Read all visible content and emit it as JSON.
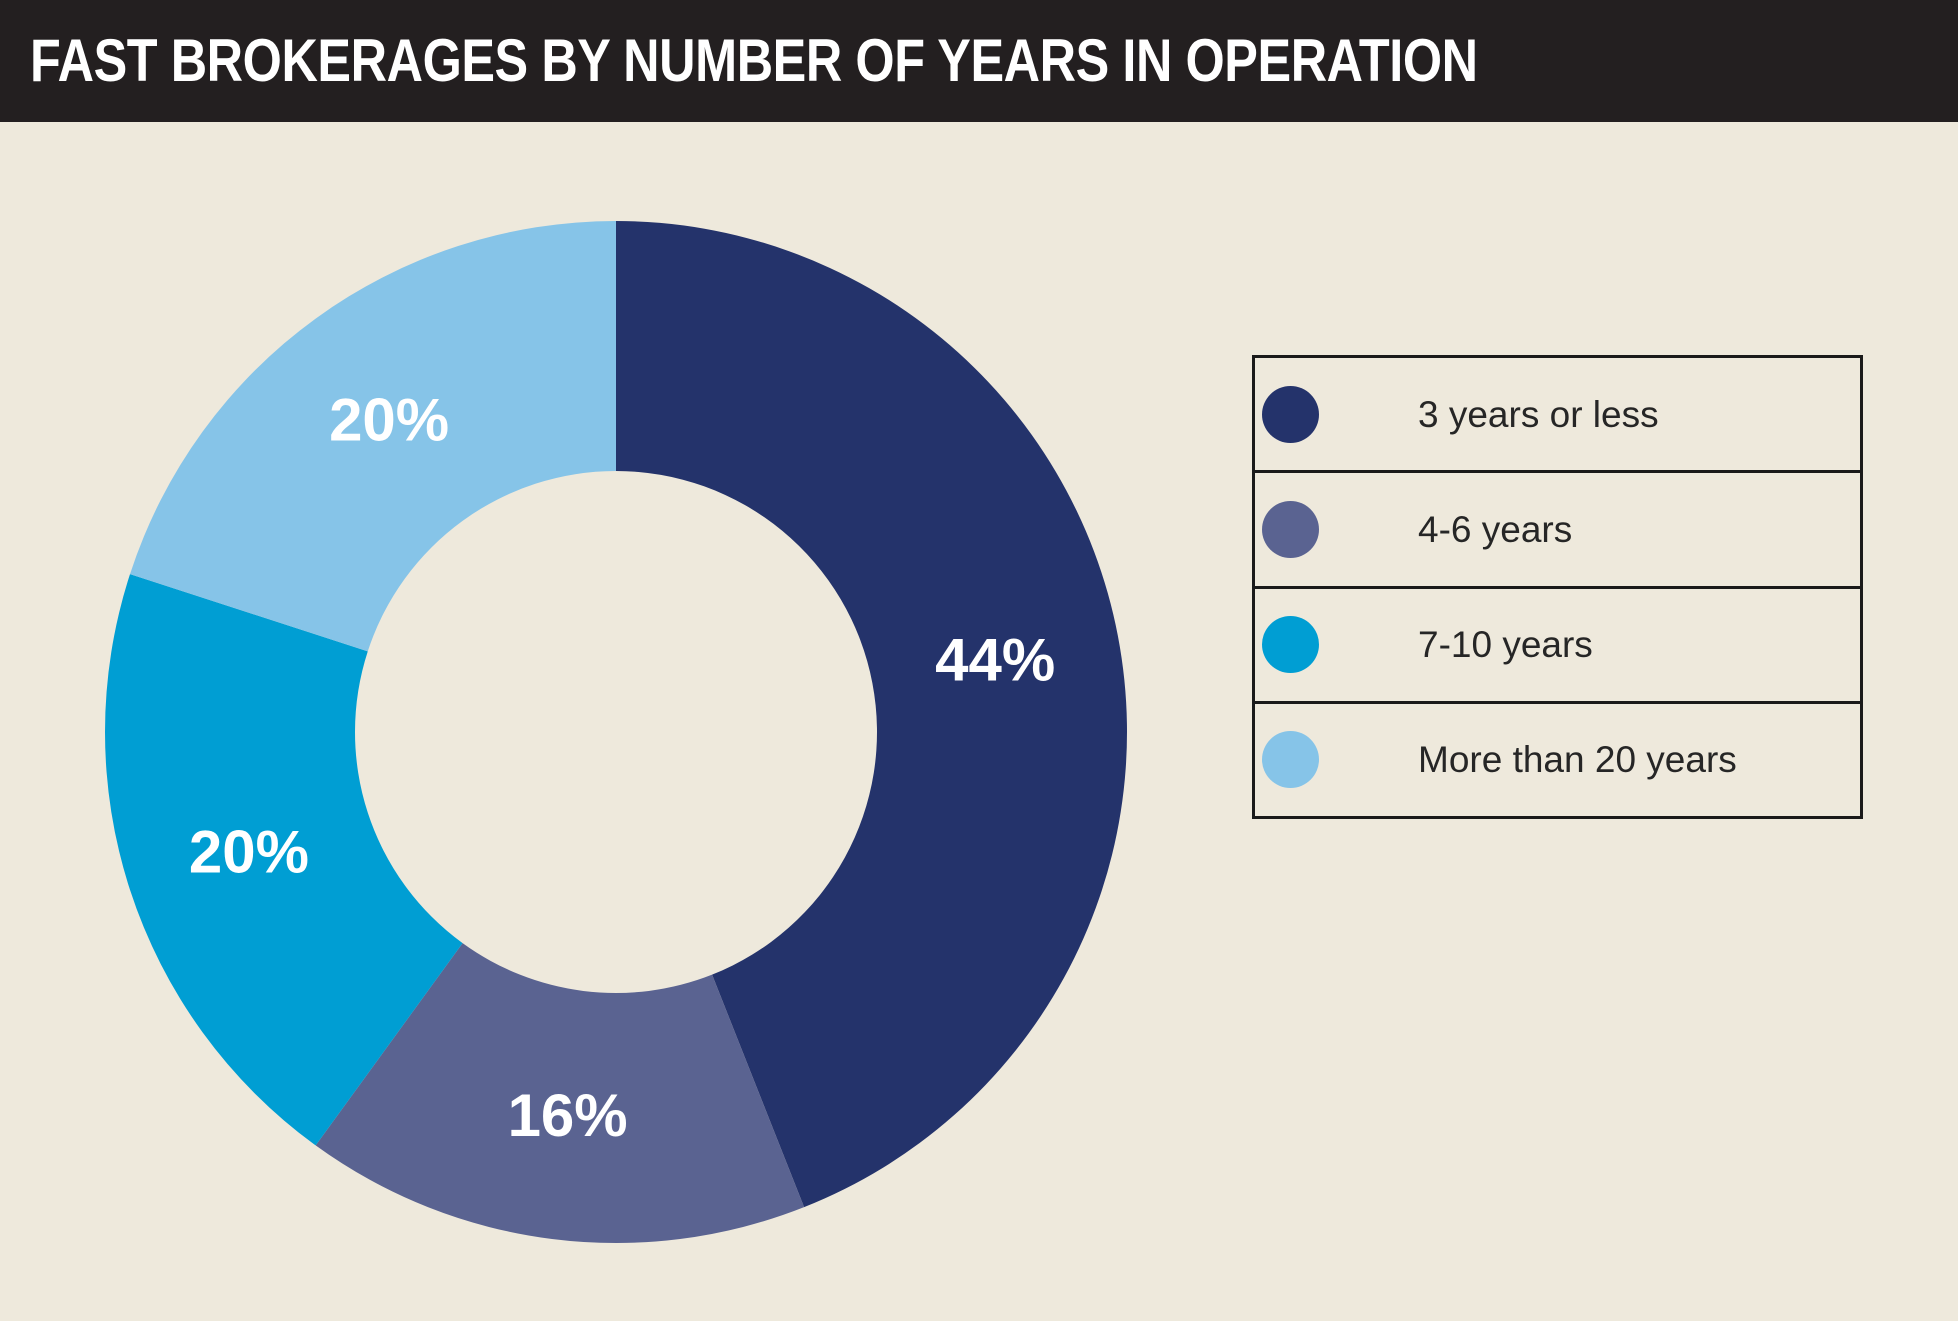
{
  "header": {
    "title": "FAST BROKERAGES BY NUMBER OF YEARS IN OPERATION"
  },
  "colors": {
    "page_background": "#EEE9DC",
    "header_background": "#231F20",
    "title_text": "#FFFFFF",
    "legend_border": "#1A1A1A",
    "legend_text": "#262626",
    "slice_label_text": "#FFFFFF"
  },
  "chart_data": {
    "type": "pie",
    "variant": "donut",
    "title": "FAST BROKERAGES BY NUMBER OF YEARS IN OPERATION",
    "categories": [
      "3 years or less",
      "4-6 years",
      "7-10 years",
      "More than 20 years"
    ],
    "values": [
      44,
      16,
      20,
      20
    ],
    "data_labels": [
      "44%",
      "16%",
      "20%",
      "20%"
    ],
    "slice_colors": [
      "#24336B",
      "#5A6391",
      "#009ED3",
      "#86C4E8"
    ],
    "start_angle_deg": 0,
    "direction": "clockwise",
    "inner_radius_ratio": 0.51,
    "legend_position": "right",
    "grid": false
  }
}
